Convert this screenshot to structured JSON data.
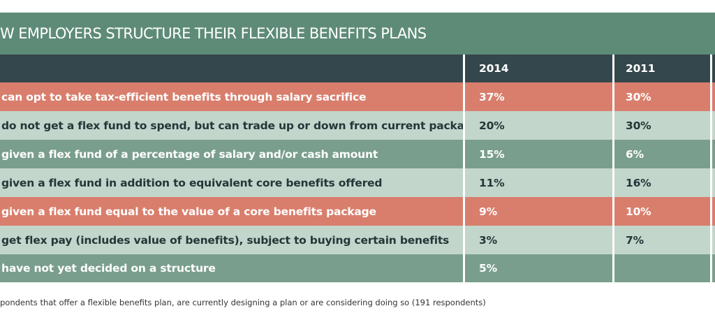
{
  "header": {
    "title": "W EMPLOYERS STRUCTURE THEIR FLEXIBLE BENEFITS PLANS"
  },
  "table": {
    "columns": [
      "2014",
      "2011"
    ],
    "rows": [
      [
        "can opt to take tax-efficient benefits through salary sacrifice",
        "37%",
        "30%"
      ],
      [
        "do not get a flex fund to spend, but can trade up or down from current package",
        "20%",
        "30%"
      ],
      [
        "given a flex fund of a percentage of salary and/or cash amount",
        "15%",
        "6%"
      ],
      [
        "given a flex fund in addition to equivalent core benefits offered",
        "11%",
        "16%"
      ],
      [
        "given a flex fund equal to the value of a core benefits package",
        "9%",
        "10%"
      ],
      [
        "get flex pay (includes value of benefits), subject to buying certain benefits",
        "3%",
        "7%"
      ],
      [
        "have not yet decided on a structure",
        "5%",
        null
      ]
    ]
  },
  "footnote": "pondents that offer a flexible benefits plan, are currently designing a plan or are considering doing so (191 respondents)"
}
